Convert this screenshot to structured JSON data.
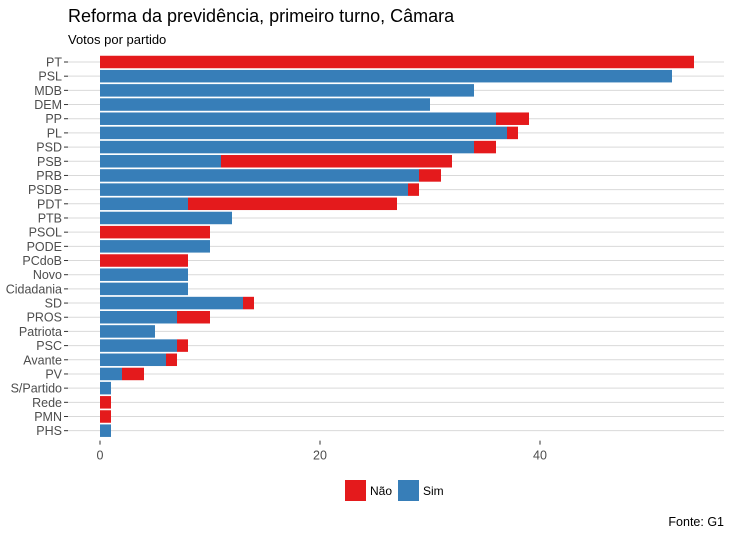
{
  "chart_data": {
    "type": "bar",
    "orientation": "horizontal",
    "stacked": true,
    "title": "Reforma da previdência, primeiro turno, Câmara",
    "subtitle": "Votos por partido",
    "caption": "Fonte: G1",
    "xlabel": "",
    "ylabel": "",
    "xlim": [
      0,
      56
    ],
    "xticks": [
      "0",
      "20",
      "40"
    ],
    "xtick_values": [
      0,
      20,
      40
    ],
    "grid": true,
    "legend_position": "bottom",
    "categories": [
      "PT",
      "PSL",
      "MDB",
      "DEM",
      "PP",
      "PL",
      "PSD",
      "PSB",
      "PRB",
      "PSDB",
      "PDT",
      "PTB",
      "PSOL",
      "PODE",
      "PCdoB",
      "Novo",
      "Cidadania",
      "SD",
      "PROS",
      "Patriota",
      "PSC",
      "Avante",
      "PV",
      "S/Partido",
      "Rede",
      "PMN",
      "PHS"
    ],
    "series": [
      {
        "name": "Sim",
        "color": "#377EB8",
        "values": [
          0,
          52,
          34,
          30,
          36,
          37,
          34,
          11,
          29,
          28,
          8,
          12,
          0,
          10,
          0,
          8,
          8,
          13,
          7,
          5,
          7,
          6,
          2,
          1,
          0,
          0,
          1
        ]
      },
      {
        "name": "Não",
        "color": "#E41A1C",
        "values": [
          54,
          0,
          0,
          0,
          3,
          1,
          2,
          21,
          2,
          1,
          19,
          0,
          10,
          0,
          8,
          0,
          0,
          1,
          3,
          0,
          1,
          1,
          2,
          0,
          1,
          1,
          0
        ]
      }
    ],
    "legend": [
      "Não",
      "Sim"
    ]
  }
}
